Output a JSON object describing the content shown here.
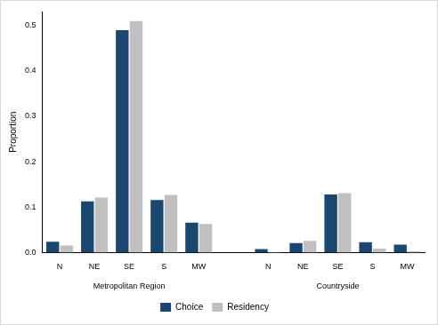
{
  "chart_data": {
    "type": "bar",
    "y_label": "Proportion",
    "categories": [
      "N",
      "NE",
      "SE",
      "S",
      "MW",
      null,
      "N",
      "NE",
      "SE",
      "S",
      "MW"
    ],
    "groups": [
      "Metropolitan Region",
      "Countryside"
    ],
    "series": [
      {
        "name": "Choice",
        "color": "#1a476f",
        "values": [
          0.024,
          0.113,
          0.489,
          0.116,
          0.066,
          null,
          0.008,
          0.021,
          0.128,
          0.023,
          0.018
        ]
      },
      {
        "name": "Residency",
        "color": "#c0c0c0",
        "values": [
          0.016,
          0.121,
          0.509,
          0.127,
          0.063,
          null,
          0.001,
          0.026,
          0.131,
          0.009,
          0.003
        ]
      }
    ],
    "ylim": [
      0,
      0.53
    ],
    "yticks": [
      {
        "value": 0,
        "label": "0.0"
      },
      0.1,
      0.2,
      0.3,
      0.4,
      0.5
    ],
    "grid": false,
    "legend": "bottom"
  }
}
